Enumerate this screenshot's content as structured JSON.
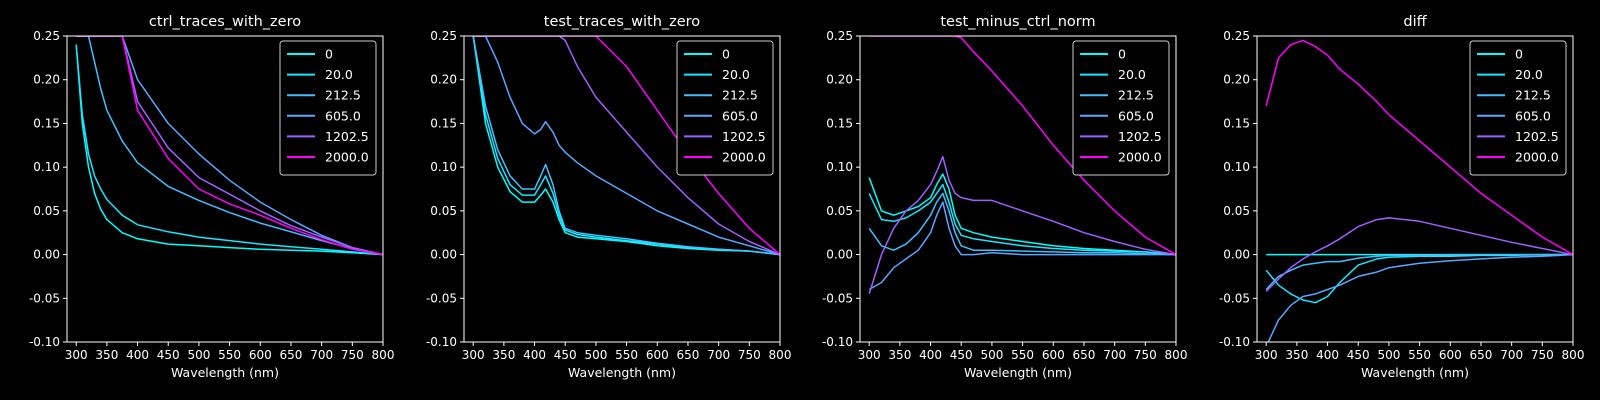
{
  "figure": {
    "background": "#000000",
    "axes_color": "#ffffff"
  },
  "legend": {
    "entries": [
      "0",
      "20.0",
      "212.5",
      "605.0",
      "1202.5",
      "2000.0"
    ],
    "colors": [
      "#00ffff",
      "#19e6ff",
      "#40c0ff",
      "#5aa5ff",
      "#a05fff",
      "#ff00ff"
    ],
    "placement": "top-right"
  },
  "chart_data": [
    {
      "type": "line",
      "title": "ctrl_traces_with_zero",
      "xlabel": "Wavelength (nm)",
      "xlim": [
        285,
        800
      ],
      "ylim": [
        -0.1,
        0.25
      ],
      "xticks": [
        300,
        350,
        400,
        450,
        500,
        550,
        600,
        650,
        700,
        750,
        800
      ],
      "yticks": [
        -0.1,
        -0.05,
        0.0,
        0.05,
        0.1,
        0.15,
        0.2,
        0.25
      ],
      "x": [
        300,
        310,
        320,
        330,
        340,
        350,
        375,
        400,
        450,
        500,
        550,
        600,
        650,
        700,
        750,
        800
      ],
      "series": [
        {
          "name": "0",
          "values": [
            0.24,
            0.15,
            0.1,
            0.07,
            0.052,
            0.04,
            0.025,
            0.018,
            0.012,
            0.01,
            0.008,
            0.006,
            0.005,
            0.004,
            0.002,
            0.0
          ]
        },
        {
          "name": "20.0",
          "values": [
            0.24,
            0.16,
            0.115,
            0.09,
            0.075,
            0.063,
            0.045,
            0.034,
            0.026,
            0.02,
            0.016,
            0.012,
            0.009,
            0.006,
            0.003,
            0.0
          ]
        },
        {
          "name": "212.5",
          "values": [
            0.25,
            0.25,
            0.25,
            0.22,
            0.19,
            0.165,
            0.13,
            0.105,
            0.078,
            0.062,
            0.048,
            0.036,
            0.026,
            0.016,
            0.007,
            0.0
          ]
        },
        {
          "name": "605.0",
          "values": [
            0.25,
            0.25,
            0.25,
            0.25,
            0.25,
            0.25,
            0.25,
            0.2,
            0.15,
            0.115,
            0.085,
            0.06,
            0.04,
            0.022,
            0.008,
            0.0
          ]
        },
        {
          "name": "1202.5",
          "values": [
            0.25,
            0.25,
            0.25,
            0.25,
            0.25,
            0.25,
            0.25,
            0.175,
            0.122,
            0.088,
            0.069,
            0.05,
            0.033,
            0.02,
            0.008,
            0.0
          ]
        },
        {
          "name": "2000.0",
          "values": [
            0.25,
            0.25,
            0.25,
            0.25,
            0.25,
            0.25,
            0.25,
            0.165,
            0.11,
            0.075,
            0.058,
            0.045,
            0.03,
            0.017,
            0.006,
            0.0
          ]
        }
      ]
    },
    {
      "type": "line",
      "title": "test_traces_with_zero",
      "xlabel": "Wavelength (nm)",
      "xlim": [
        285,
        800
      ],
      "ylim": [
        -0.1,
        0.25
      ],
      "xticks": [
        300,
        350,
        400,
        450,
        500,
        550,
        600,
        650,
        700,
        750,
        800
      ],
      "yticks": [
        -0.1,
        -0.05,
        0.0,
        0.05,
        0.1,
        0.15,
        0.2,
        0.25
      ],
      "x": [
        300,
        320,
        340,
        360,
        380,
        400,
        410,
        418,
        430,
        440,
        450,
        470,
        500,
        550,
        600,
        650,
        700,
        750,
        800
      ],
      "series": [
        {
          "name": "0",
          "values": [
            0.25,
            0.15,
            0.1,
            0.072,
            0.06,
            0.06,
            0.068,
            0.075,
            0.06,
            0.04,
            0.025,
            0.02,
            0.018,
            0.015,
            0.01,
            0.007,
            0.005,
            0.004,
            0.0
          ]
        },
        {
          "name": "20.0",
          "values": [
            0.25,
            0.16,
            0.11,
            0.08,
            0.068,
            0.068,
            0.08,
            0.09,
            0.07,
            0.045,
            0.028,
            0.023,
            0.02,
            0.016,
            0.012,
            0.008,
            0.006,
            0.004,
            0.0
          ]
        },
        {
          "name": "212.5",
          "values": [
            0.25,
            0.17,
            0.12,
            0.09,
            0.075,
            0.075,
            0.09,
            0.103,
            0.08,
            0.05,
            0.03,
            0.025,
            0.022,
            0.018,
            0.013,
            0.009,
            0.006,
            0.004,
            0.0
          ]
        },
        {
          "name": "605.0",
          "values": [
            0.25,
            0.25,
            0.22,
            0.18,
            0.15,
            0.138,
            0.143,
            0.152,
            0.14,
            0.125,
            0.117,
            0.105,
            0.09,
            0.07,
            0.05,
            0.035,
            0.02,
            0.01,
            0.0
          ]
        },
        {
          "name": "1202.5",
          "values": [
            0.25,
            0.25,
            0.25,
            0.25,
            0.25,
            0.25,
            0.25,
            0.25,
            0.25,
            0.25,
            0.245,
            0.215,
            0.18,
            0.14,
            0.1,
            0.065,
            0.035,
            0.015,
            0.0
          ]
        },
        {
          "name": "2000.0",
          "values": [
            0.25,
            0.25,
            0.25,
            0.25,
            0.25,
            0.25,
            0.25,
            0.25,
            0.25,
            0.25,
            0.25,
            0.25,
            0.25,
            0.215,
            0.165,
            0.115,
            0.07,
            0.03,
            0.0
          ]
        }
      ]
    },
    {
      "type": "line",
      "title": "test_minus_ctrl_norm",
      "xlabel": "Wavelength (nm)",
      "xlim": [
        285,
        800
      ],
      "ylim": [
        -0.1,
        0.25
      ],
      "xticks": [
        300,
        350,
        400,
        450,
        500,
        550,
        600,
        650,
        700,
        750,
        800
      ],
      "yticks": [
        -0.1,
        -0.05,
        0.0,
        0.05,
        0.1,
        0.15,
        0.2,
        0.25
      ],
      "x": [
        300,
        320,
        340,
        360,
        380,
        400,
        410,
        420,
        430,
        440,
        450,
        470,
        500,
        550,
        600,
        650,
        700,
        750,
        800
      ],
      "series": [
        {
          "name": "0",
          "values": [
            0.088,
            0.05,
            0.045,
            0.05,
            0.055,
            0.065,
            0.08,
            0.092,
            0.075,
            0.045,
            0.03,
            0.025,
            0.02,
            0.015,
            0.01,
            0.007,
            0.005,
            0.003,
            0.0
          ]
        },
        {
          "name": "20.0",
          "values": [
            0.07,
            0.04,
            0.038,
            0.042,
            0.05,
            0.06,
            0.07,
            0.08,
            0.06,
            0.035,
            0.022,
            0.018,
            0.015,
            0.01,
            0.007,
            0.005,
            0.004,
            0.003,
            0.0
          ]
        },
        {
          "name": "212.5",
          "values": [
            0.03,
            0.01,
            0.005,
            0.012,
            0.025,
            0.045,
            0.06,
            0.07,
            0.05,
            0.025,
            0.01,
            0.005,
            0.005,
            0.004,
            0.003,
            0.002,
            0.002,
            0.001,
            0.0
          ]
        },
        {
          "name": "605.0",
          "values": [
            -0.04,
            -0.032,
            -0.015,
            -0.005,
            0.005,
            0.025,
            0.045,
            0.06,
            0.03,
            0.01,
            0.0,
            0.0,
            0.002,
            0.0,
            0.0,
            0.0,
            0.0,
            0.0,
            0.0
          ]
        },
        {
          "name": "1202.5",
          "values": [
            -0.045,
            0.0,
            0.03,
            0.05,
            0.062,
            0.08,
            0.095,
            0.112,
            0.085,
            0.07,
            0.065,
            0.062,
            0.062,
            0.05,
            0.038,
            0.025,
            0.015,
            0.006,
            0.0
          ]
        },
        {
          "name": "2000.0",
          "values": [
            0.25,
            0.25,
            0.25,
            0.25,
            0.25,
            0.25,
            0.25,
            0.25,
            0.25,
            0.25,
            0.248,
            0.232,
            0.21,
            0.17,
            0.125,
            0.085,
            0.05,
            0.02,
            0.0
          ]
        }
      ]
    },
    {
      "type": "line",
      "title": "diff",
      "xlabel": "Wavelength (nm)",
      "xlim": [
        285,
        800
      ],
      "ylim": [
        -0.1,
        0.25
      ],
      "xticks": [
        300,
        350,
        400,
        450,
        500,
        550,
        600,
        650,
        700,
        750,
        800
      ],
      "yticks": [
        -0.1,
        -0.05,
        0.0,
        0.05,
        0.1,
        0.15,
        0.2,
        0.25
      ],
      "x": [
        300,
        320,
        340,
        360,
        380,
        400,
        420,
        450,
        480,
        500,
        550,
        600,
        650,
        700,
        750,
        800
      ],
      "series": [
        {
          "name": "0",
          "values": [
            0.0,
            0.0,
            0.0,
            0.0,
            0.0,
            0.0,
            0.0,
            0.0,
            0.0,
            0.0,
            0.0,
            0.0,
            0.0,
            0.0,
            0.0,
            0.0
          ]
        },
        {
          "name": "20.0",
          "values": [
            -0.018,
            -0.035,
            -0.045,
            -0.052,
            -0.055,
            -0.048,
            -0.032,
            -0.012,
            -0.005,
            -0.003,
            -0.002,
            -0.002,
            -0.001,
            -0.001,
            0.0,
            0.0
          ]
        },
        {
          "name": "212.5",
          "values": [
            -0.04,
            -0.025,
            -0.018,
            -0.012,
            -0.01,
            -0.008,
            -0.008,
            -0.004,
            -0.002,
            -0.001,
            -0.001,
            0.0,
            0.0,
            0.0,
            0.0,
            0.0
          ]
        },
        {
          "name": "605.0",
          "values": [
            -0.105,
            -0.075,
            -0.058,
            -0.048,
            -0.045,
            -0.04,
            -0.035,
            -0.025,
            -0.02,
            -0.015,
            -0.01,
            -0.007,
            -0.005,
            -0.003,
            -0.002,
            0.0
          ]
        },
        {
          "name": "1202.5",
          "values": [
            -0.042,
            -0.028,
            -0.015,
            -0.005,
            0.003,
            0.01,
            0.018,
            0.032,
            0.04,
            0.042,
            0.038,
            0.03,
            0.022,
            0.014,
            0.007,
            0.0
          ]
        },
        {
          "name": "2000.0",
          "values": [
            0.17,
            0.225,
            0.24,
            0.245,
            0.238,
            0.228,
            0.212,
            0.195,
            0.175,
            0.16,
            0.13,
            0.1,
            0.07,
            0.045,
            0.02,
            0.0
          ]
        }
      ]
    }
  ]
}
